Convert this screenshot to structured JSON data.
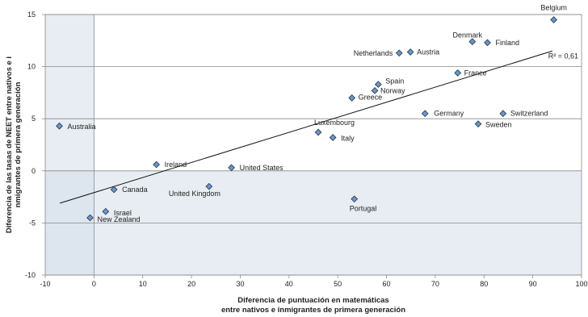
{
  "chart_data": {
    "type": "scatter",
    "xlabel": [
      "Diferencia de puntuación en matemáticas",
      "entre nativos e inmigrantes de primera generación"
    ],
    "ylabel": [
      "Diferencia de las tasas de NEET entre nativos e i",
      "nmigrantes de primera generación"
    ],
    "xlim": [
      -10,
      100
    ],
    "ylim": [
      -10,
      15
    ],
    "xticks": [
      -10,
      0,
      10,
      20,
      30,
      40,
      50,
      60,
      70,
      80,
      90,
      100
    ],
    "yticks": [
      -10,
      -5,
      0,
      5,
      10,
      15
    ],
    "grid": "horizontal",
    "shaded_regions": "x < 0 and y < 0 (light blue-grey bands)",
    "trendline": {
      "x": [
        -7,
        94
      ],
      "y": [
        -3.1,
        11.5
      ]
    },
    "annotation": "R² = 0,61",
    "points": [
      {
        "label": "Belgium",
        "x": 94.3,
        "y": 14.5
      },
      {
        "label": "Denmark",
        "x": 77.6,
        "y": 12.4
      },
      {
        "label": "Finland",
        "x": 80.7,
        "y": 12.3
      },
      {
        "label": "Netherlands",
        "x": 62.6,
        "y": 11.3
      },
      {
        "label": "Austria",
        "x": 64.9,
        "y": 11.4
      },
      {
        "label": "France",
        "x": 74.6,
        "y": 9.4
      },
      {
        "label": "Spain",
        "x": 58.3,
        "y": 8.3
      },
      {
        "label": "Norway",
        "x": 57.6,
        "y": 7.7
      },
      {
        "label": "Greece",
        "x": 52.9,
        "y": 7.0
      },
      {
        "label": "Germany",
        "x": 67.9,
        "y": 5.5
      },
      {
        "label": "Switzerland",
        "x": 83.9,
        "y": 5.5
      },
      {
        "label": "Sweden",
        "x": 78.8,
        "y": 4.5
      },
      {
        "label": "Luxembourg",
        "x": 46.0,
        "y": 3.7
      },
      {
        "label": "Italy",
        "x": 49.0,
        "y": 3.2
      },
      {
        "label": "Australia",
        "x": -7.1,
        "y": 4.3
      },
      {
        "label": "Ireland",
        "x": 12.8,
        "y": 0.6
      },
      {
        "label": "United States",
        "x": 28.2,
        "y": 0.3
      },
      {
        "label": "Canada",
        "x": 4.1,
        "y": -1.8
      },
      {
        "label": "United Kingdom",
        "x": 23.6,
        "y": -1.5
      },
      {
        "label": "Portugal",
        "x": 53.4,
        "y": -2.7
      },
      {
        "label": "Israel",
        "x": 2.4,
        "y": -3.9
      },
      {
        "label": "New Zealand",
        "x": -0.8,
        "y": -4.5
      }
    ]
  }
}
